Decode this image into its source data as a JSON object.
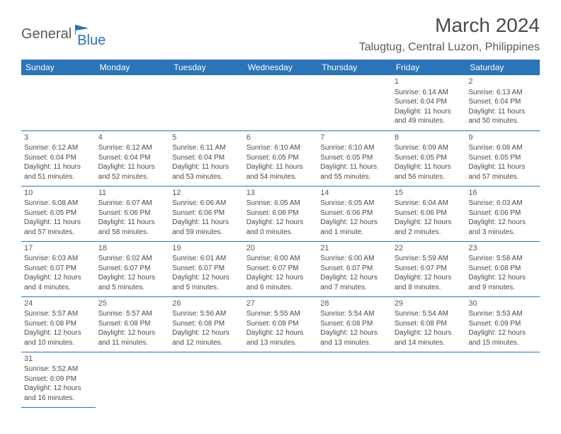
{
  "logo": {
    "general": "General",
    "blue": "Blue"
  },
  "title": "March 2024",
  "location": "Talugtug, Central Luzon, Philippines",
  "colors": {
    "header_bg": "#2b74b8",
    "header_text": "#ffffff",
    "border": "#2b74b8",
    "text": "#4a4a4a",
    "muted": "#5a5a5a",
    "background": "#ffffff"
  },
  "day_headers": [
    "Sunday",
    "Monday",
    "Tuesday",
    "Wednesday",
    "Thursday",
    "Friday",
    "Saturday"
  ],
  "weeks": [
    [
      null,
      null,
      null,
      null,
      null,
      {
        "n": "1",
        "sr": "Sunrise: 6:14 AM",
        "ss": "Sunset: 6:04 PM",
        "dl1": "Daylight: 11 hours",
        "dl2": "and 49 minutes."
      },
      {
        "n": "2",
        "sr": "Sunrise: 6:13 AM",
        "ss": "Sunset: 6:04 PM",
        "dl1": "Daylight: 11 hours",
        "dl2": "and 50 minutes."
      }
    ],
    [
      {
        "n": "3",
        "sr": "Sunrise: 6:12 AM",
        "ss": "Sunset: 6:04 PM",
        "dl1": "Daylight: 11 hours",
        "dl2": "and 51 minutes."
      },
      {
        "n": "4",
        "sr": "Sunrise: 6:12 AM",
        "ss": "Sunset: 6:04 PM",
        "dl1": "Daylight: 11 hours",
        "dl2": "and 52 minutes."
      },
      {
        "n": "5",
        "sr": "Sunrise: 6:11 AM",
        "ss": "Sunset: 6:04 PM",
        "dl1": "Daylight: 11 hours",
        "dl2": "and 53 minutes."
      },
      {
        "n": "6",
        "sr": "Sunrise: 6:10 AM",
        "ss": "Sunset: 6:05 PM",
        "dl1": "Daylight: 11 hours",
        "dl2": "and 54 minutes."
      },
      {
        "n": "7",
        "sr": "Sunrise: 6:10 AM",
        "ss": "Sunset: 6:05 PM",
        "dl1": "Daylight: 11 hours",
        "dl2": "and 55 minutes."
      },
      {
        "n": "8",
        "sr": "Sunrise: 6:09 AM",
        "ss": "Sunset: 6:05 PM",
        "dl1": "Daylight: 11 hours",
        "dl2": "and 56 minutes."
      },
      {
        "n": "9",
        "sr": "Sunrise: 6:08 AM",
        "ss": "Sunset: 6:05 PM",
        "dl1": "Daylight: 11 hours",
        "dl2": "and 57 minutes."
      }
    ],
    [
      {
        "n": "10",
        "sr": "Sunrise: 6:08 AM",
        "ss": "Sunset: 6:05 PM",
        "dl1": "Daylight: 11 hours",
        "dl2": "and 57 minutes."
      },
      {
        "n": "11",
        "sr": "Sunrise: 6:07 AM",
        "ss": "Sunset: 6:06 PM",
        "dl1": "Daylight: 11 hours",
        "dl2": "and 58 minutes."
      },
      {
        "n": "12",
        "sr": "Sunrise: 6:06 AM",
        "ss": "Sunset: 6:06 PM",
        "dl1": "Daylight: 11 hours",
        "dl2": "and 59 minutes."
      },
      {
        "n": "13",
        "sr": "Sunrise: 6:05 AM",
        "ss": "Sunset: 6:06 PM",
        "dl1": "Daylight: 12 hours",
        "dl2": "and 0 minutes."
      },
      {
        "n": "14",
        "sr": "Sunrise: 6:05 AM",
        "ss": "Sunset: 6:06 PM",
        "dl1": "Daylight: 12 hours",
        "dl2": "and 1 minute."
      },
      {
        "n": "15",
        "sr": "Sunrise: 6:04 AM",
        "ss": "Sunset: 6:06 PM",
        "dl1": "Daylight: 12 hours",
        "dl2": "and 2 minutes."
      },
      {
        "n": "16",
        "sr": "Sunrise: 6:03 AM",
        "ss": "Sunset: 6:06 PM",
        "dl1": "Daylight: 12 hours",
        "dl2": "and 3 minutes."
      }
    ],
    [
      {
        "n": "17",
        "sr": "Sunrise: 6:03 AM",
        "ss": "Sunset: 6:07 PM",
        "dl1": "Daylight: 12 hours",
        "dl2": "and 4 minutes."
      },
      {
        "n": "18",
        "sr": "Sunrise: 6:02 AM",
        "ss": "Sunset: 6:07 PM",
        "dl1": "Daylight: 12 hours",
        "dl2": "and 5 minutes."
      },
      {
        "n": "19",
        "sr": "Sunrise: 6:01 AM",
        "ss": "Sunset: 6:07 PM",
        "dl1": "Daylight: 12 hours",
        "dl2": "and 5 minutes."
      },
      {
        "n": "20",
        "sr": "Sunrise: 6:00 AM",
        "ss": "Sunset: 6:07 PM",
        "dl1": "Daylight: 12 hours",
        "dl2": "and 6 minutes."
      },
      {
        "n": "21",
        "sr": "Sunrise: 6:00 AM",
        "ss": "Sunset: 6:07 PM",
        "dl1": "Daylight: 12 hours",
        "dl2": "and 7 minutes."
      },
      {
        "n": "22",
        "sr": "Sunrise: 5:59 AM",
        "ss": "Sunset: 6:07 PM",
        "dl1": "Daylight: 12 hours",
        "dl2": "and 8 minutes."
      },
      {
        "n": "23",
        "sr": "Sunrise: 5:58 AM",
        "ss": "Sunset: 6:08 PM",
        "dl1": "Daylight: 12 hours",
        "dl2": "and 9 minutes."
      }
    ],
    [
      {
        "n": "24",
        "sr": "Sunrise: 5:57 AM",
        "ss": "Sunset: 6:08 PM",
        "dl1": "Daylight: 12 hours",
        "dl2": "and 10 minutes."
      },
      {
        "n": "25",
        "sr": "Sunrise: 5:57 AM",
        "ss": "Sunset: 6:08 PM",
        "dl1": "Daylight: 12 hours",
        "dl2": "and 11 minutes."
      },
      {
        "n": "26",
        "sr": "Sunrise: 5:56 AM",
        "ss": "Sunset: 6:08 PM",
        "dl1": "Daylight: 12 hours",
        "dl2": "and 12 minutes."
      },
      {
        "n": "27",
        "sr": "Sunrise: 5:55 AM",
        "ss": "Sunset: 6:08 PM",
        "dl1": "Daylight: 12 hours",
        "dl2": "and 13 minutes."
      },
      {
        "n": "28",
        "sr": "Sunrise: 5:54 AM",
        "ss": "Sunset: 6:08 PM",
        "dl1": "Daylight: 12 hours",
        "dl2": "and 13 minutes."
      },
      {
        "n": "29",
        "sr": "Sunrise: 5:54 AM",
        "ss": "Sunset: 6:08 PM",
        "dl1": "Daylight: 12 hours",
        "dl2": "and 14 minutes."
      },
      {
        "n": "30",
        "sr": "Sunrise: 5:53 AM",
        "ss": "Sunset: 6:09 PM",
        "dl1": "Daylight: 12 hours",
        "dl2": "and 15 minutes."
      }
    ],
    [
      {
        "n": "31",
        "sr": "Sunrise: 5:52 AM",
        "ss": "Sunset: 6:09 PM",
        "dl1": "Daylight: 12 hours",
        "dl2": "and 16 minutes."
      },
      null,
      null,
      null,
      null,
      null,
      null
    ]
  ]
}
